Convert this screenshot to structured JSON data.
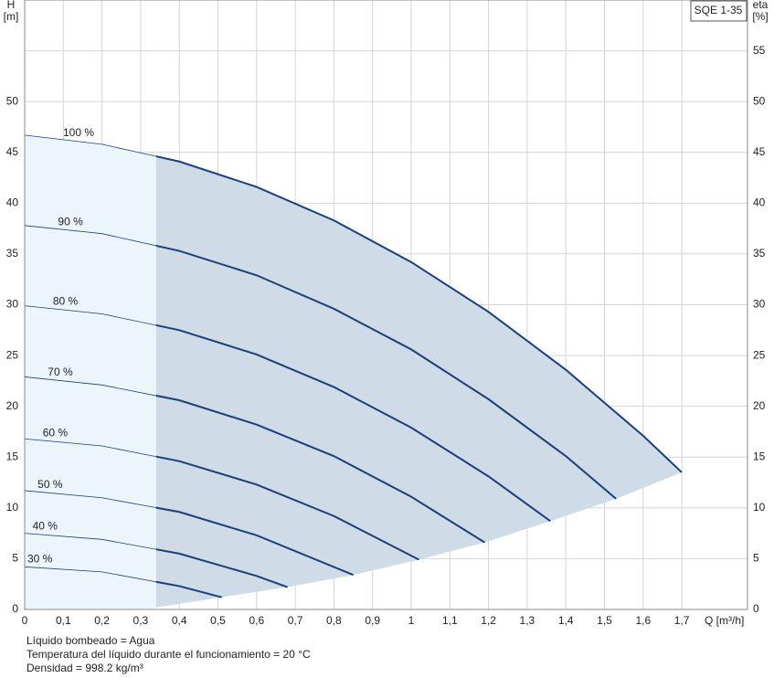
{
  "chart_data": {
    "type": "line",
    "title": "SQE 1-35",
    "y_label_name": "H",
    "y_label_unit": "[m]",
    "y2_label_name": "eta",
    "y2_label_unit": "[%]",
    "x_label": "Q [m³/h]",
    "notes": [
      "Líquido bombeado = Agua",
      "Temperatura del líquido durante el funcionamiento = 20 °C",
      "Densidad = 998.2 kg/m³"
    ],
    "xlim": [
      0,
      1.87
    ],
    "ylim": [
      0,
      60
    ],
    "y2lim": [
      0,
      60
    ],
    "xticks": [
      0,
      {
        "value": 0.1,
        "label": "0,1"
      },
      {
        "value": 0.2,
        "label": "0,2"
      },
      {
        "value": 0.3,
        "label": "0,3"
      },
      {
        "value": 0.4,
        "label": "0,4"
      },
      {
        "value": 0.5,
        "label": "0,5"
      },
      {
        "value": 0.6,
        "label": "0,6"
      },
      {
        "value": 0.7,
        "label": "0,7"
      },
      {
        "value": 0.8,
        "label": "0,8"
      },
      {
        "value": 0.9,
        "label": "0,9"
      },
      {
        "value": 1,
        "label": "1"
      },
      {
        "value": 1.1,
        "label": "1,1"
      },
      {
        "value": 1.2,
        "label": "1,2"
      },
      {
        "value": 1.3,
        "label": "1,3"
      },
      {
        "value": 1.4,
        "label": "1,4"
      },
      {
        "value": 1.5,
        "label": "1,5"
      },
      {
        "value": 1.6,
        "label": "1,6"
      },
      {
        "value": 1.7,
        "label": "1,7"
      }
    ],
    "yticks": [
      0,
      5,
      10,
      15,
      20,
      25,
      30,
      35,
      40,
      45,
      50
    ],
    "y2ticks": [
      0,
      5,
      10,
      15,
      20,
      25,
      30,
      35,
      40,
      45,
      50,
      55
    ],
    "grid": true,
    "min_flow": 0.34,
    "light_color": "#ecf5fc",
    "region_color": "#cfdbe6",
    "series": [
      {
        "name": "100 %",
        "color": "#1b3f7a",
        "x": [
          0,
          0.2,
          0.4,
          0.6,
          0.8,
          1.0,
          1.2,
          1.4,
          1.6,
          1.7
        ],
        "values": [
          46.7,
          45.8,
          44.1,
          41.6,
          38.3,
          34.2,
          29.3,
          23.6,
          17.1,
          13.5
        ]
      },
      {
        "name": "90 %",
        "color": "#1b3f7a",
        "x": [
          0,
          0.2,
          0.4,
          0.6,
          0.8,
          1.0,
          1.2,
          1.4,
          1.53
        ],
        "values": [
          37.8,
          37.0,
          35.3,
          32.9,
          29.6,
          25.6,
          20.7,
          15.1,
          10.9
        ]
      },
      {
        "name": "80 %",
        "color": "#1b3f7a",
        "x": [
          0,
          0.2,
          0.4,
          0.6,
          0.8,
          1.0,
          1.2,
          1.36
        ],
        "values": [
          29.9,
          29.1,
          27.5,
          25.1,
          21.9,
          17.9,
          13.1,
          8.7
        ]
      },
      {
        "name": "70 %",
        "color": "#1b3f7a",
        "x": [
          0,
          0.2,
          0.4,
          0.6,
          0.8,
          1.0,
          1.19
        ],
        "values": [
          22.9,
          22.1,
          20.6,
          18.2,
          15.1,
          11.1,
          6.6
        ]
      },
      {
        "name": "60 %",
        "color": "#1b3f7a",
        "x": [
          0,
          0.2,
          0.4,
          0.6,
          0.8,
          1.02
        ],
        "values": [
          16.8,
          16.1,
          14.6,
          12.3,
          9.2,
          4.9
        ]
      },
      {
        "name": "50 %",
        "color": "#1b3f7a",
        "x": [
          0,
          0.2,
          0.4,
          0.6,
          0.85
        ],
        "values": [
          11.7,
          11.0,
          9.6,
          7.3,
          3.4
        ]
      },
      {
        "name": "40 %",
        "color": "#1b3f7a",
        "x": [
          0,
          0.2,
          0.4,
          0.6,
          0.68
        ],
        "values": [
          7.5,
          6.9,
          5.5,
          3.3,
          2.2
        ]
      },
      {
        "name": "30 %",
        "color": "#1b3f7a",
        "x": [
          0,
          0.2,
          0.4,
          0.51
        ],
        "values": [
          4.2,
          3.7,
          2.3,
          1.2
        ]
      }
    ]
  }
}
